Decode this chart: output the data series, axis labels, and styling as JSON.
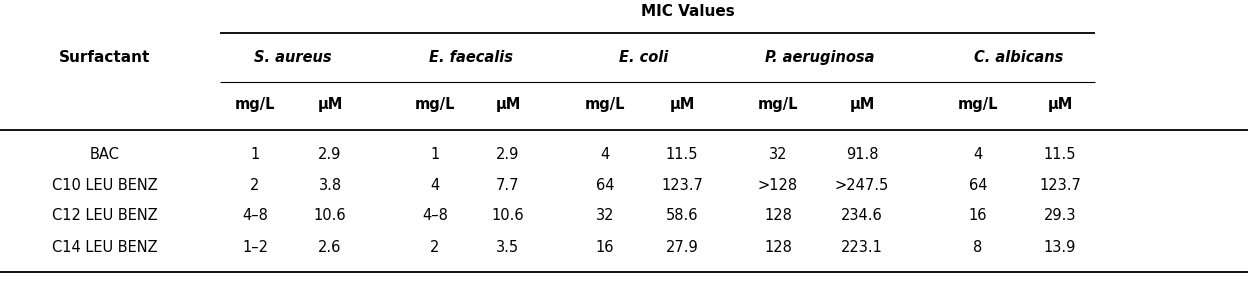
{
  "title": "MIC Values",
  "surfactant_label": "Surfactant",
  "species": [
    "S. aureus",
    "E. faecalis",
    "E. coli",
    "P. aeruginosa",
    "C. albicans"
  ],
  "sub_headers": [
    "mg/L",
    "μM",
    "mg/L",
    "μM",
    "mg/L",
    "μM",
    "mg/L",
    "μM",
    "mg/L",
    "μM"
  ],
  "rows": [
    [
      "BAC",
      "1",
      "2.9",
      "1",
      "2.9",
      "4",
      "11.5",
      "32",
      "91.8",
      "4",
      "11.5"
    ],
    [
      "C10 LEU BENZ",
      "2",
      "3.8",
      "4",
      "7.7",
      "64",
      "123.7",
      ">128",
      ">247.5",
      "64",
      "123.7"
    ],
    [
      "C12 LEU BENZ",
      "4–8",
      "10.6",
      "4–8",
      "10.6",
      "32",
      "58.6",
      "128",
      "234.6",
      "16",
      "29.3"
    ],
    [
      "C14 LEU BENZ",
      "1–2",
      "2.6",
      "2",
      "3.5",
      "16",
      "27.9",
      "128",
      "223.1",
      "8",
      "13.9"
    ]
  ],
  "bg_color": "#ffffff",
  "text_color": "#000000",
  "font_size": 10.5,
  "species_font_size": 10.5,
  "title_font_size": 11.0,
  "surfactant_font_size": 11.0
}
